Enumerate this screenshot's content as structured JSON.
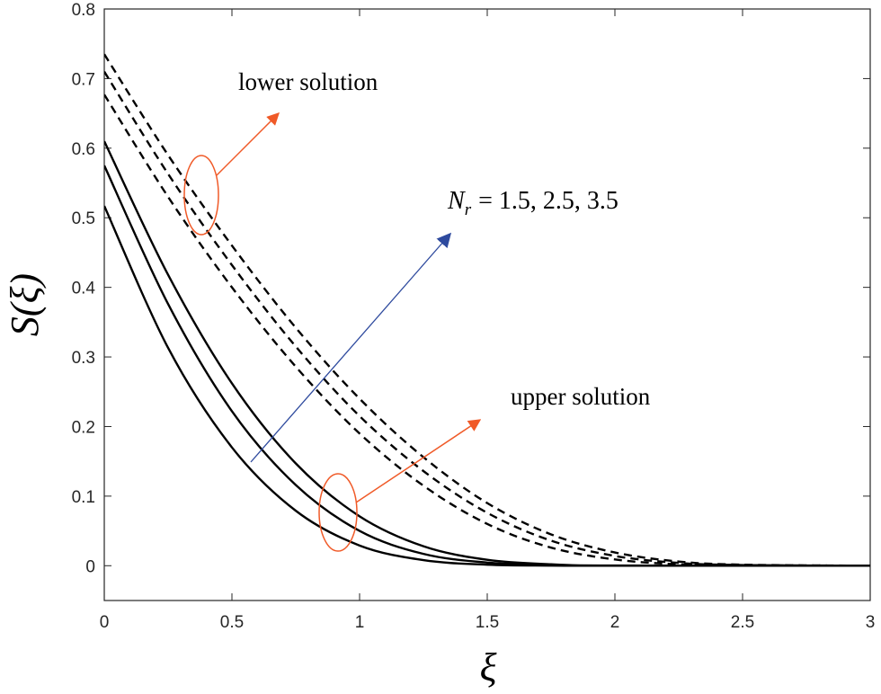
{
  "chart_data": {
    "type": "line",
    "title": "",
    "xlabel": "ξ",
    "ylabel": "S(ξ)",
    "xlim": [
      0,
      3
    ],
    "ylim": [
      -0.05,
      0.8
    ],
    "xticks": [
      "0",
      "0.5",
      "1",
      "1.5",
      "2",
      "2.5",
      "3"
    ],
    "yticks": [
      "0",
      "0.1",
      "0.2",
      "0.3",
      "0.4",
      "0.5",
      "0.6",
      "0.7",
      "0.8"
    ],
    "series": [
      {
        "name": "upper solution, Nr = 1.5",
        "style": "solid",
        "x": [
          0,
          0.25,
          0.5,
          0.75,
          1.0,
          1.25,
          1.5,
          1.75,
          2.0,
          3.0
        ],
        "values": [
          0.517,
          0.313,
          0.17,
          0.079,
          0.029,
          0.008,
          0.0015,
          0.0002,
          0.0,
          0.0
        ]
      },
      {
        "name": "upper solution, Nr = 2.5",
        "style": "solid",
        "x": [
          0,
          0.25,
          0.5,
          0.75,
          1.0,
          1.25,
          1.5,
          1.75,
          2.0,
          3.0
        ],
        "values": [
          0.575,
          0.376,
          0.222,
          0.116,
          0.05,
          0.017,
          0.0045,
          0.001,
          0.0,
          0.0
        ]
      },
      {
        "name": "upper solution, Nr = 3.5",
        "style": "solid",
        "x": [
          0,
          0.25,
          0.5,
          0.75,
          1.0,
          1.25,
          1.5,
          1.75,
          2.0,
          3.0
        ],
        "values": [
          0.61,
          0.418,
          0.262,
          0.147,
          0.071,
          0.028,
          0.0085,
          0.002,
          0.0003,
          0.0
        ]
      },
      {
        "name": "lower solution, Nr = 1.5",
        "style": "dashed",
        "x": [
          0,
          0.25,
          0.5,
          0.75,
          1.0,
          1.25,
          1.5,
          1.75,
          2.0,
          2.25,
          2.5,
          3.0
        ],
        "values": [
          0.677,
          0.53,
          0.4,
          0.286,
          0.19,
          0.115,
          0.06,
          0.026,
          0.009,
          0.002,
          0.0005,
          0.0
        ]
      },
      {
        "name": "lower solution, Nr = 2.5",
        "style": "dashed",
        "x": [
          0,
          0.25,
          0.5,
          0.75,
          1.0,
          1.25,
          1.5,
          1.75,
          2.0,
          2.25,
          2.5,
          3.0
        ],
        "values": [
          0.71,
          0.563,
          0.432,
          0.315,
          0.215,
          0.136,
          0.076,
          0.036,
          0.014,
          0.004,
          0.001,
          0.0
        ]
      },
      {
        "name": "lower solution, Nr = 3.5",
        "style": "dashed",
        "x": [
          0,
          0.25,
          0.5,
          0.75,
          1.0,
          1.25,
          1.5,
          1.75,
          2.0,
          2.25,
          2.5,
          3.0
        ],
        "values": [
          0.735,
          0.59,
          0.46,
          0.342,
          0.24,
          0.156,
          0.09,
          0.045,
          0.019,
          0.006,
          0.0015,
          0.0
        ]
      }
    ],
    "annotations": {
      "lower_label": "lower solution",
      "upper_label": "upper solution",
      "param_symbol": "N",
      "param_subscript": "r",
      "param_values": "= 1.5, 2.5, 3.5"
    },
    "colors": {
      "curve": "#000000",
      "annotation_arrow": "#f05a28",
      "parameter_arrow": "#2e4a9e"
    }
  }
}
